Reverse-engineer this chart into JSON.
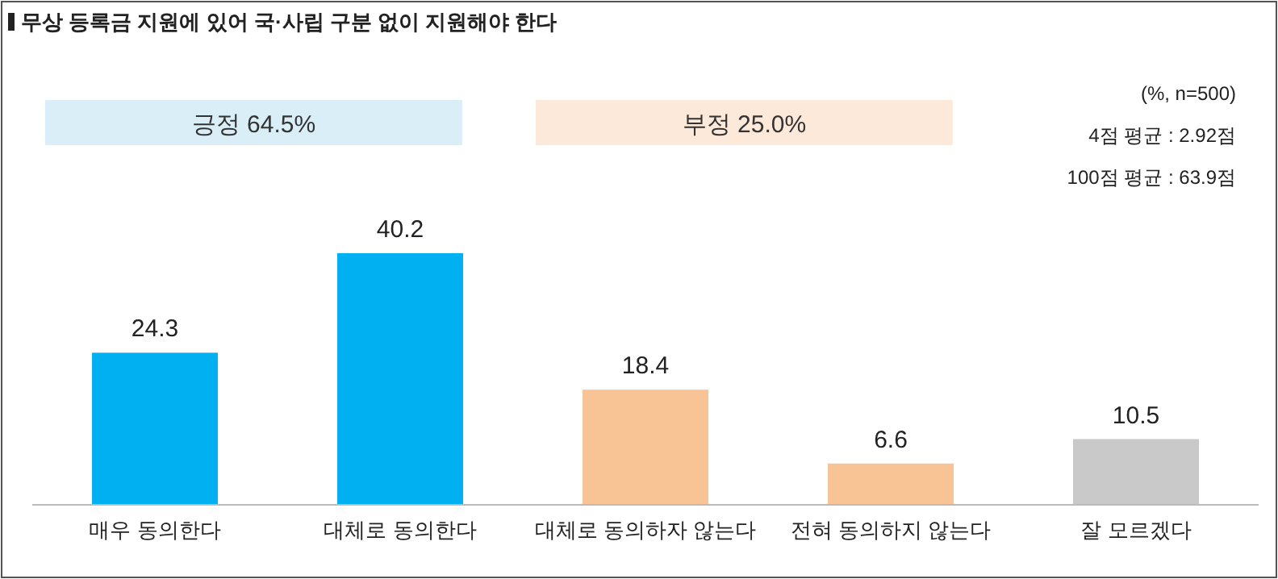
{
  "chart_data": {
    "type": "bar",
    "title": "무상 등록금 지원에 있어 국·사립 구분 없이 지원해야 한다",
    "categories": [
      "매우 동의한다",
      "대체로 동의한다",
      "대체로 동의하자 않는다",
      "전혀 동의하지 않는다",
      "잘 모르겠다"
    ],
    "values": [
      24.3,
      40.2,
      18.4,
      6.6,
      10.5
    ],
    "colors": [
      "#00b0f0",
      "#00b0f0",
      "#f8c496",
      "#f8c496",
      "#c9c9c9"
    ],
    "data_labels": true,
    "annotations": [
      "긍정 64.5%",
      "부정 25.0%",
      "(%, n=500)",
      "4점 평균 : 2.92점",
      "100점 평균 : 63.9점"
    ]
  }
}
